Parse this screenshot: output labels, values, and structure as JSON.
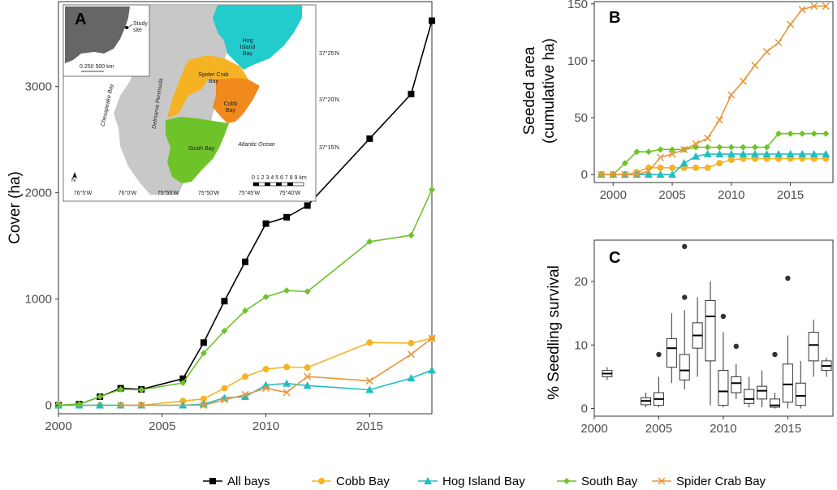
{
  "panelA": {
    "letter": "A",
    "ylabel": "Cover (ha)",
    "xlim": [
      2000,
      2018
    ],
    "ylim": [
      -80,
      3800
    ],
    "xticks": [
      2000,
      2005,
      2010,
      2015
    ],
    "yticks": [
      0,
      1000,
      2000,
      3000
    ],
    "series": [
      {
        "key": "all",
        "x": [
          2000,
          2001,
          2002,
          2003,
          2004,
          2006,
          2007,
          2008,
          2009,
          2010,
          2011,
          2012,
          2015,
          2017,
          2018
        ],
        "y": [
          0,
          10,
          80,
          160,
          150,
          250,
          590,
          980,
          1350,
          1710,
          1770,
          1880,
          2510,
          2930,
          3620
        ]
      },
      {
        "key": "cobb",
        "x": [
          2000,
          2001,
          2002,
          2003,
          2004,
          2006,
          2007,
          2008,
          2009,
          2010,
          2011,
          2012,
          2015,
          2017,
          2018
        ],
        "y": [
          0,
          0,
          0,
          0,
          0,
          40,
          60,
          160,
          270,
          340,
          360,
          355,
          590,
          585,
          630
        ]
      },
      {
        "key": "hog",
        "x": [
          2000,
          2001,
          2002,
          2003,
          2004,
          2006,
          2007,
          2008,
          2009,
          2010,
          2011,
          2012,
          2015,
          2017,
          2018
        ],
        "y": [
          0,
          0,
          0,
          0,
          0,
          0,
          10,
          70,
          80,
          190,
          205,
          185,
          145,
          255,
          330
        ]
      },
      {
        "key": "south",
        "x": [
          2000,
          2001,
          2002,
          2003,
          2004,
          2006,
          2007,
          2008,
          2009,
          2010,
          2011,
          2012,
          2015,
          2017,
          2018
        ],
        "y": [
          0,
          10,
          80,
          150,
          145,
          210,
          490,
          700,
          890,
          1020,
          1080,
          1070,
          1540,
          1600,
          2030
        ]
      },
      {
        "key": "spider",
        "x": [
          2003,
          2004,
          2007,
          2008,
          2009,
          2010,
          2011,
          2012,
          2015,
          2017,
          2018
        ],
        "y": [
          0,
          0,
          0,
          50,
          100,
          160,
          120,
          270,
          230,
          480,
          630
        ]
      }
    ]
  },
  "panelB": {
    "letter": "B",
    "ylabel_line1": "Seeded area",
    "ylabel_line2": "(cumulative ha)",
    "xlim": [
      1998.4,
      2018.6
    ],
    "ylim": [
      -7,
      152
    ],
    "xticks": [
      2000,
      2005,
      2010,
      2015
    ],
    "yticks": [
      0,
      50,
      100,
      150
    ],
    "series": [
      {
        "key": "cobb",
        "x": [
          1999,
          2000,
          2001,
          2002,
          2003,
          2004,
          2005,
          2006,
          2007,
          2008,
          2009,
          2010,
          2011,
          2012,
          2013,
          2014,
          2015,
          2016,
          2017,
          2018
        ],
        "y": [
          0,
          0,
          0,
          2,
          6,
          6,
          6,
          6,
          6,
          6,
          10,
          13,
          14,
          14,
          14,
          14,
          14,
          14,
          14,
          14
        ]
      },
      {
        "key": "hog",
        "x": [
          1999,
          2000,
          2001,
          2002,
          2003,
          2004,
          2005,
          2006,
          2007,
          2008,
          2009,
          2010,
          2011,
          2012,
          2013,
          2014,
          2015,
          2016,
          2017,
          2018
        ],
        "y": [
          0,
          0,
          0,
          0,
          0,
          0,
          0,
          10,
          16,
          18,
          18,
          18,
          18,
          18,
          18,
          18,
          18,
          18,
          18,
          18
        ]
      },
      {
        "key": "south",
        "x": [
          1999,
          2000,
          2001,
          2002,
          2003,
          2004,
          2005,
          2006,
          2007,
          2008,
          2009,
          2010,
          2011,
          2012,
          2013,
          2014,
          2015,
          2016,
          2017,
          2018
        ],
        "y": [
          0,
          0,
          10,
          20,
          20,
          22,
          22,
          22,
          24,
          24,
          24,
          24,
          24,
          24,
          24,
          36,
          36,
          36,
          36,
          36
        ]
      },
      {
        "key": "spider",
        "x": [
          1999,
          2000,
          2001,
          2002,
          2003,
          2004,
          2005,
          2006,
          2007,
          2008,
          2009,
          2010,
          2011,
          2012,
          2013,
          2014,
          2015,
          2016,
          2017,
          2018
        ],
        "y": [
          0,
          0,
          0,
          0,
          3,
          15,
          18,
          22,
          27,
          32,
          48,
          70,
          82,
          96,
          108,
          116,
          132,
          145,
          148,
          148
        ]
      }
    ]
  },
  "panelC": {
    "letter": "C",
    "ylabel": "% Seedling survival",
    "xlim": [
      2000,
      2018.5
    ],
    "ylim": [
      -1.2,
      26.5
    ],
    "xticks": [
      2000,
      2005,
      2010,
      2015
    ],
    "yticks": [
      0,
      10,
      20
    ],
    "boxes": [
      {
        "x": 2001,
        "min": 4.5,
        "q1": 5.0,
        "med": 5.5,
        "q3": 6.0,
        "max": 6.5,
        "out": []
      },
      {
        "x": 2004,
        "min": 0.2,
        "q1": 0.6,
        "med": 1.2,
        "q3": 1.7,
        "max": 2.5,
        "out": []
      },
      {
        "x": 2005,
        "min": 0.2,
        "q1": 0.5,
        "med": 1.5,
        "q3": 2.5,
        "max": 5.0,
        "out": [
          8.5
        ]
      },
      {
        "x": 2006,
        "min": 4.0,
        "q1": 6.5,
        "med": 9.5,
        "q3": 11.0,
        "max": 15.0,
        "out": []
      },
      {
        "x": 2007,
        "min": 3.0,
        "q1": 4.5,
        "med": 6.0,
        "q3": 8.5,
        "max": 15.5,
        "out": [
          17.5,
          25.5
        ]
      },
      {
        "x": 2008,
        "min": 5.0,
        "q1": 9.5,
        "med": 11.5,
        "q3": 13.5,
        "max": 17.5,
        "out": []
      },
      {
        "x": 2009,
        "min": 0.5,
        "q1": 7.5,
        "med": 14.5,
        "q3": 17.0,
        "max": 20.0,
        "out": []
      },
      {
        "x": 2010,
        "min": 0.2,
        "q1": 0.5,
        "med": 2.7,
        "q3": 6.0,
        "max": 12.0,
        "out": [
          14.5
        ]
      },
      {
        "x": 2011,
        "min": 1.5,
        "q1": 2.5,
        "med": 4.0,
        "q3": 5.0,
        "max": 7.0,
        "out": [
          9.8
        ]
      },
      {
        "x": 2012,
        "min": 0.2,
        "q1": 0.8,
        "med": 1.5,
        "q3": 3.0,
        "max": 5.0,
        "out": []
      },
      {
        "x": 2013,
        "min": 0.2,
        "q1": 1.5,
        "med": 2.8,
        "q3": 3.5,
        "max": 6.0,
        "out": []
      },
      {
        "x": 2014,
        "min": 0.0,
        "q1": 0.2,
        "med": 0.5,
        "q3": 1.5,
        "max": 2.5,
        "out": [
          8.5
        ]
      },
      {
        "x": 2015,
        "min": 0.0,
        "q1": 1.0,
        "med": 3.8,
        "q3": 7.0,
        "max": 11.5,
        "out": [
          20.5
        ]
      },
      {
        "x": 2016,
        "min": 0.0,
        "q1": 0.5,
        "med": 2.0,
        "q3": 4.0,
        "max": 7.5,
        "out": []
      },
      {
        "x": 2017,
        "min": 5.0,
        "q1": 7.5,
        "med": 10.0,
        "q3": 12.0,
        "max": 14.0,
        "out": []
      },
      {
        "x": 2018,
        "min": 5.0,
        "q1": 6.0,
        "med": 6.7,
        "q3": 7.5,
        "max": 8.0,
        "out": []
      }
    ]
  },
  "legend": [
    {
      "key": "all",
      "label": "All bays",
      "color": "#000000",
      "marker": "square"
    },
    {
      "key": "cobb",
      "label": "Cobb Bay",
      "color": "#f5b324",
      "marker": "circle"
    },
    {
      "key": "hog",
      "label": "Hog Island Bay",
      "color": "#20bec2",
      "marker": "triangle"
    },
    {
      "key": "south",
      "label": "South Bay",
      "color": "#6ec22a",
      "marker": "diamond"
    },
    {
      "key": "spider",
      "label": "Spider Crab Bay",
      "color": "#e8953a",
      "marker": "cross"
    }
  ],
  "map": {
    "inset_label_line1": "Study",
    "inset_label_line2": "site",
    "inset_scale": "0  250 500 km",
    "hog_line1": "Hog",
    "hog_line2": "Island",
    "hog_line3": "Bay",
    "spider_line1": "Spider Crab",
    "spider_line2": "Bay",
    "cobb_line1": "Cobb",
    "cobb_line2": "Bay",
    "south": "South Bay",
    "chesapeake": "Chesapeake Bay",
    "delmarva": "Delmarva Peninsula",
    "atlantic": "Atlantic Ocean",
    "lat_labels": [
      "37°25'N",
      "37°20'N",
      "37°15'N"
    ],
    "lon_labels": [
      "76°5'W",
      "76°0'W",
      "75°55'W",
      "75°50'W",
      "75°45'W",
      "75°40'W"
    ],
    "scale_label": "0 1 2 3 4 5 6 7 8 9 km",
    "north": "N",
    "colors": {
      "land": "#c8c8c8",
      "hog": "#22cccc",
      "spider": "#f5b324",
      "cobb": "#f08a1c",
      "south": "#6ec22a",
      "inset_land": "#666666"
    }
  }
}
